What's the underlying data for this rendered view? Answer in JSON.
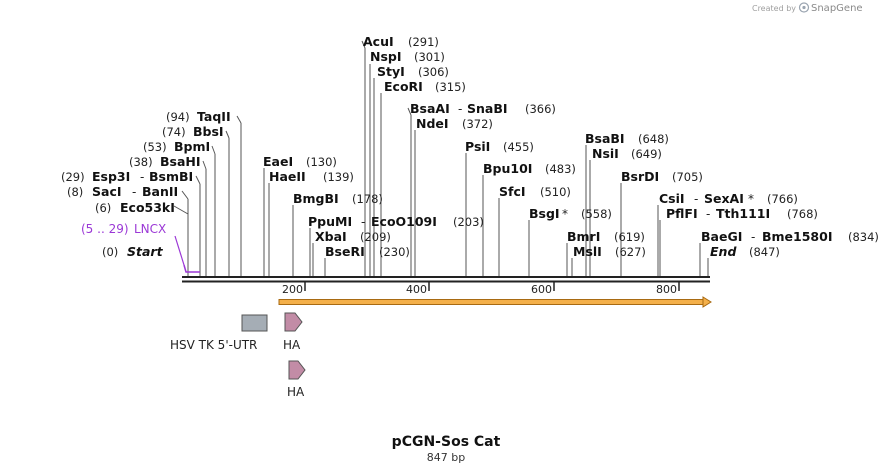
{
  "watermark": {
    "created_by": "Created by",
    "brand": "SnapGene"
  },
  "map": {
    "title": "pCGN-Sos Cat",
    "length_label": "847 bp",
    "axis_ticks": [
      "200",
      "400",
      "600",
      "800"
    ]
  },
  "primer": {
    "range": "(5 .. 29)",
    "name": "LNCX"
  },
  "enzymes": [
    {
      "pos": "(0)",
      "name": "Start",
      "italic": true
    },
    {
      "pos": "(6)",
      "name": "Eco53kI"
    },
    {
      "pos": "(8)",
      "name": "SacI",
      "name2": "BanII"
    },
    {
      "pos": "(29)",
      "name": "Esp3I",
      "name2": "BsmBI"
    },
    {
      "pos": "(38)",
      "name": "BsaHI"
    },
    {
      "pos": "(53)",
      "name": "BpmI"
    },
    {
      "pos": "(74)",
      "name": "BbsI"
    },
    {
      "pos": "(94)",
      "name": "TaqII"
    },
    {
      "name": "EaeI",
      "pos": "(130)"
    },
    {
      "name": "HaeII",
      "pos": "(139)"
    },
    {
      "name": "BmgBI",
      "pos": "(178)"
    },
    {
      "name": "PpuMI",
      "name2": "EcoO109I",
      "pos": "(203)"
    },
    {
      "name": "XbaI",
      "pos": "(209)"
    },
    {
      "name": "BseRI",
      "pos": "(230)"
    },
    {
      "name": "AcuI",
      "pos": "(291)"
    },
    {
      "name": "NspI",
      "pos": "(301)"
    },
    {
      "name": "StyI",
      "pos": "(306)"
    },
    {
      "name": "EcoRI",
      "pos": "(315)"
    },
    {
      "name": "BsaAI",
      "name2": "SnaBI",
      "pos": "(366)"
    },
    {
      "name": "NdeI",
      "pos": "(372)"
    },
    {
      "name": "PsiI",
      "pos": "(455)"
    },
    {
      "name": "Bpu10I",
      "pos": "(483)"
    },
    {
      "name": "SfcI",
      "pos": "(510)"
    },
    {
      "name": "BsgI",
      "star": "*",
      "pos": "(558)"
    },
    {
      "name": "BmrI",
      "pos": "(619)"
    },
    {
      "name": "MslI",
      "pos": "(627)"
    },
    {
      "name": "BsaBI",
      "pos": "(648)"
    },
    {
      "name": "NsiI",
      "pos": "(649)"
    },
    {
      "name": "BsrDI",
      "pos": "(705)"
    },
    {
      "name": "CsiI",
      "name2": "SexAI",
      "star2": "*",
      "pos": "(766)"
    },
    {
      "name": "PflFI",
      "name2": "Tth111I",
      "pos": "(768)"
    },
    {
      "name": "BaeGI",
      "name2": "Bme1580I",
      "pos": "(834)"
    },
    {
      "name": "End",
      "italic": true,
      "pos": "(847)"
    }
  ],
  "features": [
    {
      "name": "HSV TK 5'-UTR",
      "shape": "box",
      "color": "#a5adb5"
    },
    {
      "name": "HA",
      "shape": "arrow",
      "color": "#c28ca6"
    },
    {
      "name": "HA",
      "shape": "arrow",
      "color": "#c28ca6"
    }
  ],
  "orf_color": "#f0a030",
  "primer_color": "#9b38d6"
}
